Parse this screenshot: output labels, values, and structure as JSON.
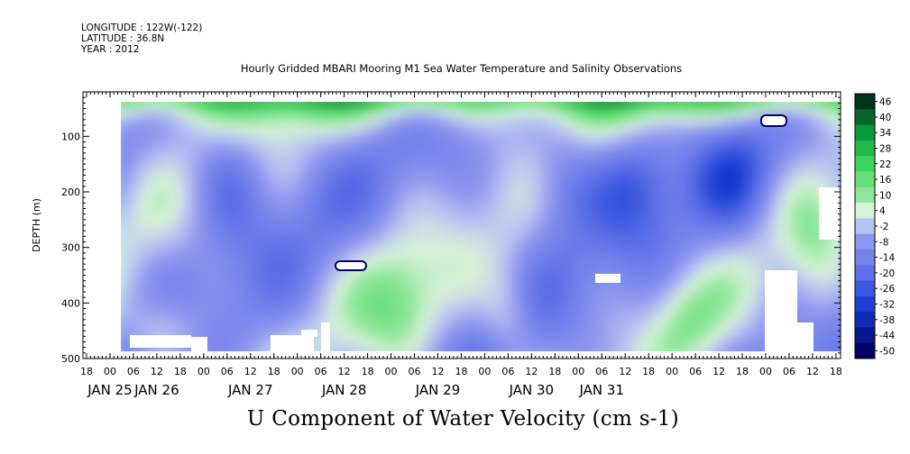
{
  "header": {
    "longitude": "LONGITUDE : 122W(-122)",
    "latitude": "LATITUDE : 36.8N",
    "year": "YEAR : 2012"
  },
  "chart_data": {
    "type": "heatmap",
    "title": "Hourly Gridded MBARI Mooring M1 Sea Water Temperature and Salinity Observations",
    "variable_label": "U Component of Water Velocity (cm s-1)",
    "ylabel": "DEPTH (m)",
    "y_axis": {
      "ticks": [
        100,
        200,
        300,
        400,
        500
      ],
      "range": [
        500,
        20
      ],
      "inverted": true
    },
    "x_axis": {
      "hour_ticks": [
        "18",
        "00",
        "06",
        "12",
        "18",
        "00",
        "06",
        "12",
        "18",
        "00",
        "06",
        "12",
        "18",
        "00",
        "06",
        "12",
        "18",
        "00",
        "06",
        "12",
        "18",
        "00",
        "06",
        "12",
        "18",
        "00",
        "06",
        "12",
        "18",
        "00",
        "06",
        "12",
        "18"
      ],
      "date_labels": [
        {
          "label": "JAN 25",
          "tick": 1
        },
        {
          "label": "JAN 26",
          "tick": 3
        },
        {
          "label": "JAN 27",
          "tick": 7
        },
        {
          "label": "JAN 28",
          "tick": 11
        },
        {
          "label": "JAN 29",
          "tick": 15
        },
        {
          "label": "JAN 30",
          "tick": 19
        },
        {
          "label": "JAN 31",
          "tick": 22
        }
      ]
    },
    "colorbar": {
      "levels": [
        -50,
        -44,
        -38,
        -32,
        -26,
        -20,
        -14,
        -8,
        -2,
        4,
        10,
        16,
        22,
        28,
        34,
        40,
        46
      ],
      "color_min": "#000066",
      "color_mid_neg": "#8c96ee",
      "color_mid": "#d8f2d8",
      "color_mid_pos": "#3ed65a",
      "color_max": "#00331a"
    },
    "field_summary": {
      "dominant_range": [
        -26,
        16
      ],
      "near_surface": "positive (green)",
      "interior": "negative (blue)",
      "strong_negative_cores_days": [
        "JAN 26",
        "JAN 29",
        "JAN 30",
        "JAN 31"
      ]
    }
  }
}
